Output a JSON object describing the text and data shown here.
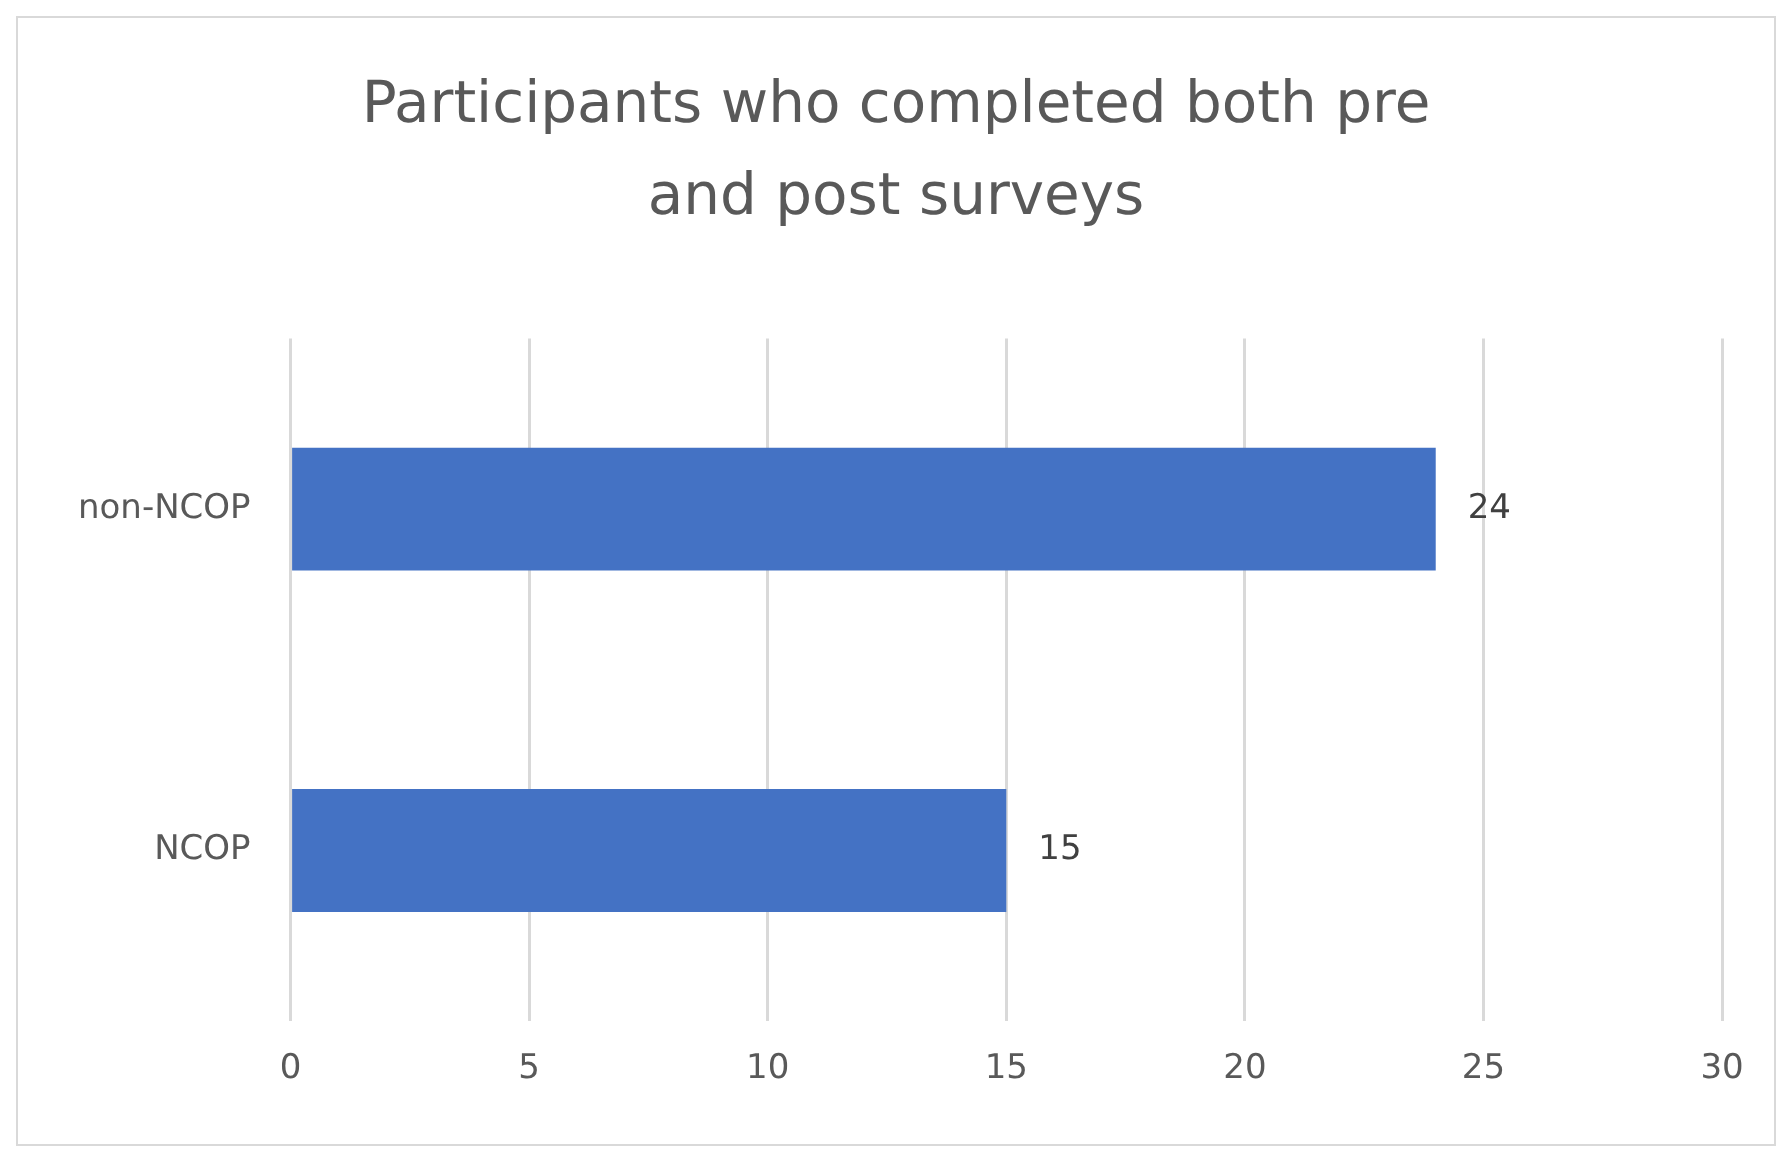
{
  "chart_data": {
    "type": "bar",
    "orientation": "horizontal",
    "title": "Participants who completed both pre and post surveys",
    "categories": [
      "non-NCOP",
      "NCOP"
    ],
    "values": [
      24,
      15
    ],
    "color": "#4472c4",
    "xlim": [
      0,
      30
    ],
    "xticks": [
      0,
      5,
      10,
      15,
      20,
      25,
      30
    ],
    "grid": "x",
    "data_labels": true
  }
}
